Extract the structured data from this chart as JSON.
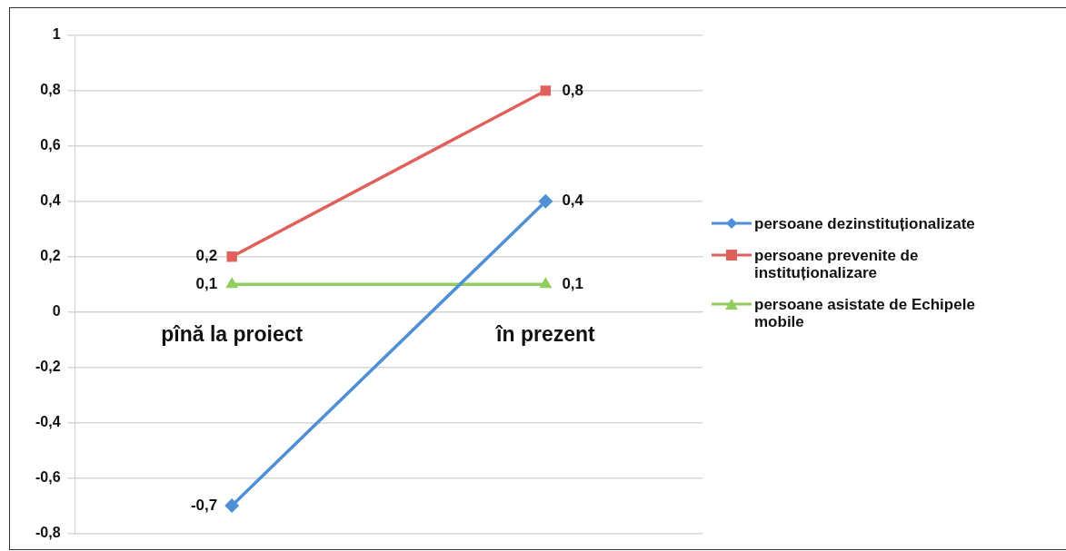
{
  "chart_data": {
    "type": "line",
    "categories": [
      "pînă la proiect",
      "în prezent"
    ],
    "series": [
      {
        "name": "persoane dezinstituționalizate",
        "color": "#4f8fd6",
        "marker": "diamond",
        "values": [
          -0.7,
          0.4
        ],
        "value_labels": [
          "-0,7",
          "0,4"
        ]
      },
      {
        "name": "persoane prevenite de instituționalizare",
        "color": "#e0605b",
        "marker": "square",
        "values": [
          0.2,
          0.8
        ],
        "value_labels": [
          "0,2",
          "0,8"
        ]
      },
      {
        "name": "persoane asistate de Echipele mobile",
        "color": "#92cc5e",
        "marker": "triangle",
        "values": [
          0.1,
          0.1
        ],
        "value_labels": [
          "0,1",
          "0,1"
        ]
      }
    ],
    "ylim": [
      -0.8,
      1
    ],
    "yticks": [
      {
        "value": -0.8,
        "label": "-0,8"
      },
      {
        "value": -0.6,
        "label": "-0,6"
      },
      {
        "value": -0.4,
        "label": "-0,4"
      },
      {
        "value": -0.2,
        "label": "-0,2"
      },
      {
        "value": 0,
        "label": "0"
      },
      {
        "value": 0.2,
        "label": "0,2"
      },
      {
        "value": 0.4,
        "label": "0,4"
      },
      {
        "value": 0.6,
        "label": "0,6"
      },
      {
        "value": 0.8,
        "label": "0,8"
      },
      {
        "value": 1,
        "label": "1"
      }
    ],
    "grid": "y",
    "legend": "right"
  }
}
